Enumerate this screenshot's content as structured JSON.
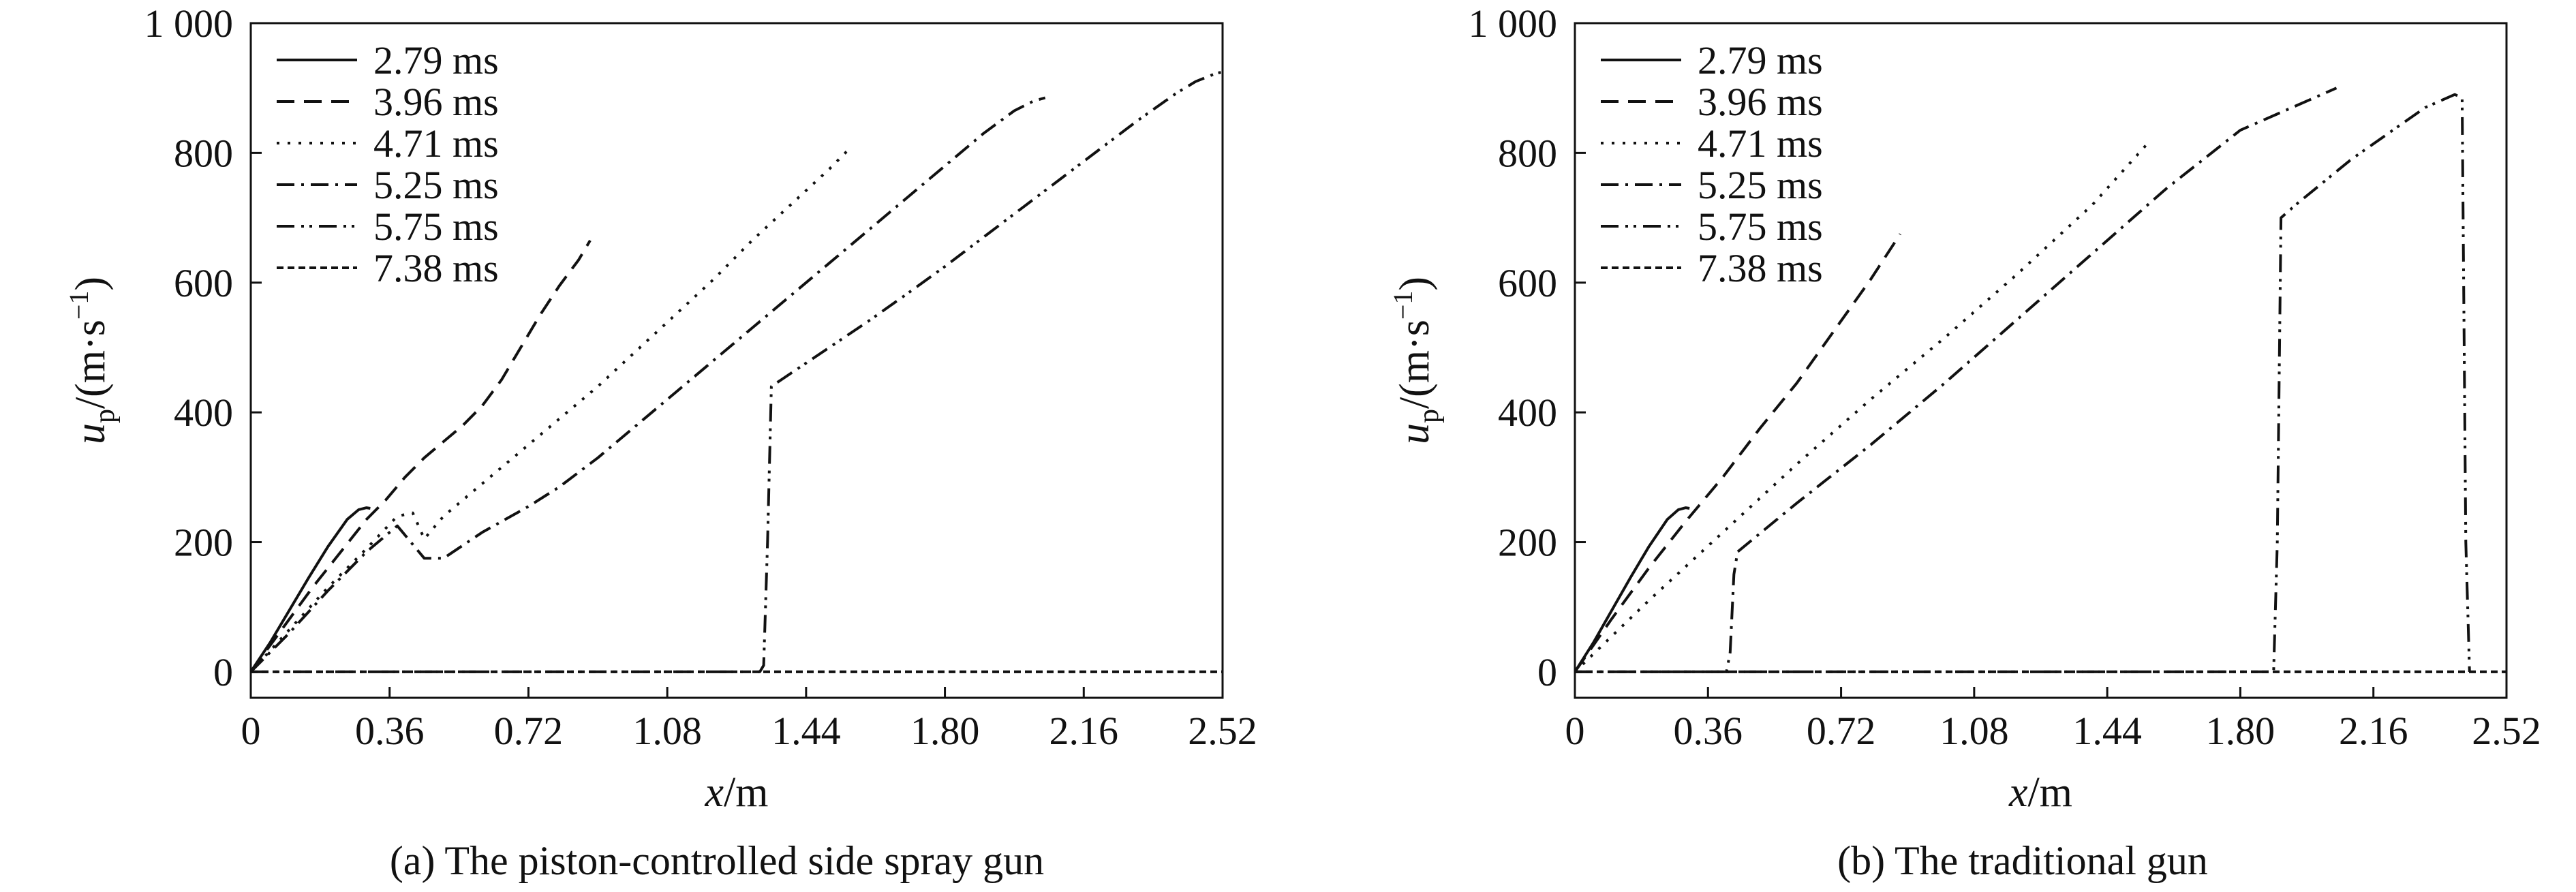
{
  "panels": [
    {
      "caption": "(a) The piston-controlled side spray gun",
      "chart_data": {
        "type": "line",
        "xlabel": "x/m",
        "ylabel": "u_p/(m·s^-1)",
        "xlim": [
          0,
          2.52
        ],
        "ylim": [
          -40,
          1000
        ],
        "xticks": [
          "0",
          "0.36",
          "0.72",
          "1.08",
          "1.44",
          "1.80",
          "2.16",
          "2.52"
        ],
        "yticks": [
          "0",
          "200",
          "400",
          "600",
          "800",
          "1 000"
        ],
        "legend_position": "top-left",
        "series": [
          {
            "name": "2.79 ms",
            "x": [
              0,
              0.05,
              0.1,
              0.15,
              0.2,
              0.25,
              0.28,
              0.3,
              0.31
            ],
            "y": [
              0,
              45,
              95,
              145,
              193,
              235,
              250,
              253,
              252
            ]
          },
          {
            "name": "3.96 ms",
            "x": [
              0,
              0.08,
              0.16,
              0.24,
              0.3,
              0.35,
              0.4,
              0.45,
              0.5,
              0.55,
              0.6,
              0.65,
              0.7,
              0.75,
              0.8,
              0.85,
              0.88
            ],
            "y": [
              0,
              65,
              130,
              190,
              235,
              265,
              300,
              330,
              355,
              380,
              410,
              450,
              500,
              550,
              595,
              635,
              665
            ]
          },
          {
            "name": "4.71 ms",
            "x": [
              0,
              0.1,
              0.2,
              0.3,
              0.38,
              0.42,
              0.45,
              0.5,
              0.6,
              0.7,
              0.8,
              0.9,
              1.0,
              1.1,
              1.2,
              1.3,
              1.4,
              1.5,
              1.55
            ],
            "y": [
              0,
              65,
              130,
              190,
              240,
              245,
              205,
              240,
              290,
              340,
              390,
              440,
              495,
              550,
              605,
              665,
              720,
              775,
              805
            ]
          },
          {
            "name": "5.25 ms",
            "x": [
              0,
              0.1,
              0.2,
              0.3,
              0.38,
              0.45,
              0.5,
              0.55,
              0.6,
              0.72,
              0.8,
              0.9,
              1.0,
              1.1,
              1.2,
              1.3,
              1.4,
              1.5,
              1.6,
              1.7,
              1.8,
              1.9,
              1.98,
              2.03,
              2.06
            ],
            "y": [
              0,
              60,
              125,
              185,
              225,
              175,
              175,
              195,
              215,
              255,
              285,
              330,
              380,
              430,
              480,
              530,
              580,
              630,
              680,
              730,
              780,
              830,
              865,
              880,
              885
            ]
          },
          {
            "name": "5.75 ms",
            "x": [
              0,
              1.32,
              1.33,
              1.34,
              1.35,
              1.4,
              1.5,
              1.6,
              1.7,
              1.8,
              1.9,
              2.0,
              2.1,
              2.2,
              2.3,
              2.4,
              2.45,
              2.5,
              2.52
            ],
            "y": [
              0,
              0,
              10,
              200,
              440,
              460,
              500,
              540,
              582,
              625,
              670,
              715,
              760,
              805,
              850,
              892,
              910,
              922,
              925
            ]
          },
          {
            "name": "7.38 ms",
            "x": [
              0,
              2.52
            ],
            "y": [
              0,
              0
            ]
          }
        ]
      }
    },
    {
      "caption": "(b) The traditional gun",
      "chart_data": {
        "type": "line",
        "xlabel": "x/m",
        "ylabel": "u_p/(m·s^-1)",
        "xlim": [
          0,
          2.52
        ],
        "ylim": [
          -40,
          1000
        ],
        "xticks": [
          "0",
          "0.36",
          "0.72",
          "1.08",
          "1.44",
          "1.80",
          "2.16",
          "2.52"
        ],
        "yticks": [
          "0",
          "200",
          "400",
          "600",
          "800",
          "1 000"
        ],
        "legend_position": "top-left",
        "series": [
          {
            "name": "2.79 ms",
            "x": [
              0,
              0.05,
              0.1,
              0.15,
              0.2,
              0.25,
              0.28,
              0.3,
              0.31
            ],
            "y": [
              0,
              45,
              95,
              145,
              193,
              235,
              250,
              253,
              252
            ]
          },
          {
            "name": "3.96 ms",
            "x": [
              0,
              0.1,
              0.2,
              0.3,
              0.4,
              0.5,
              0.6,
              0.7,
              0.8,
              0.88
            ],
            "y": [
              0,
              82,
              160,
              232,
              300,
              375,
              445,
              525,
              605,
              675
            ]
          },
          {
            "name": "4.71 ms",
            "x": [
              0,
              0.2,
              0.4,
              0.6,
              0.8,
              1.0,
              1.2,
              1.4,
              1.55
            ],
            "y": [
              0,
              110,
              215,
              320,
              420,
              515,
              615,
              720,
              815
            ]
          },
          {
            "name": "5.25 ms",
            "x": [
              0,
              0.41,
              0.42,
              0.43,
              0.44,
              0.6,
              0.8,
              1.0,
              1.2,
              1.4,
              1.6,
              1.8,
              2.0,
              2.06
            ],
            "y": [
              0,
              0,
              30,
              150,
              185,
              260,
              350,
              445,
              545,
              645,
              745,
              835,
              885,
              900
            ]
          },
          {
            "name": "5.75 ms",
            "x": [
              0,
              1.89,
              1.9,
              1.91,
              1.95,
              2.1,
              2.3,
              2.38,
              2.4,
              2.41,
              2.42
            ],
            "y": [
              0,
              0,
              200,
              700,
              720,
              790,
              870,
              890,
              885,
              200,
              0
            ]
          },
          {
            "name": "7.38 ms",
            "x": [
              0,
              2.52
            ],
            "y": [
              0,
              0
            ]
          }
        ]
      }
    }
  ]
}
